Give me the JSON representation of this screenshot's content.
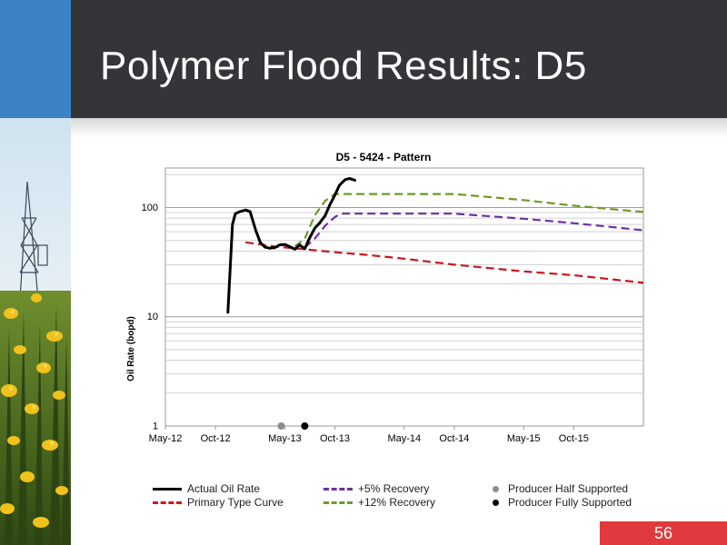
{
  "slide": {
    "title": "Polymer Flood Results: D5",
    "page_number": "56"
  },
  "colors": {
    "header": "#333538",
    "accent_blue": "#3c82c4",
    "page_badge": "#e03a3e",
    "actual": "#000000",
    "primary": "#c8191f",
    "plus5": "#7030a0",
    "plus12": "#6e9a2a",
    "half_supported": "#8c8c8c",
    "fully_supported": "#000000"
  },
  "chart_data": {
    "type": "line",
    "title": "D5 - 5424 - Pattern",
    "xlabel": "",
    "ylabel": "Oil Rate (bopd)",
    "y_scale": "log",
    "ylim": [
      1,
      230
    ],
    "y_ticks": [
      {
        "value": 1,
        "label": "1"
      },
      {
        "value": 10,
        "label": "10"
      },
      {
        "value": 100,
        "label": "100"
      }
    ],
    "xlim": [
      "2012-05-01",
      "2016-05-01"
    ],
    "x_ticks": [
      {
        "value": "2012-05-01",
        "label": "May-12"
      },
      {
        "value": "2012-10-01",
        "label": "Oct-12"
      },
      {
        "value": "2013-05-01",
        "label": "May-13"
      },
      {
        "value": "2013-10-01",
        "label": "Oct-13"
      },
      {
        "value": "2014-05-01",
        "label": "May-14"
      },
      {
        "value": "2014-10-01",
        "label": "Oct-14"
      },
      {
        "value": "2015-05-01",
        "label": "May-15"
      },
      {
        "value": "2015-10-01",
        "label": "Oct-15"
      }
    ],
    "grid": true,
    "legend_position": "bottom",
    "series": [
      {
        "name": "Actual Oil Rate",
        "color": "#000000",
        "style": "solid",
        "points": [
          [
            "2012-11-08",
            11
          ],
          [
            "2012-11-22",
            70
          ],
          [
            "2012-12-01",
            88
          ],
          [
            "2012-12-15",
            92
          ],
          [
            "2013-01-01",
            95
          ],
          [
            "2013-01-15",
            92
          ],
          [
            "2013-02-01",
            62
          ],
          [
            "2013-02-15",
            48
          ],
          [
            "2013-03-01",
            43.5
          ],
          [
            "2013-03-15",
            42.5
          ],
          [
            "2013-04-01",
            43
          ],
          [
            "2013-04-15",
            45.5
          ],
          [
            "2013-05-01",
            46
          ],
          [
            "2013-05-15",
            44
          ],
          [
            "2013-06-01",
            41.5
          ],
          [
            "2013-06-15",
            45.5
          ],
          [
            "2013-07-01",
            42
          ],
          [
            "2013-07-15",
            52
          ],
          [
            "2013-08-01",
            65
          ],
          [
            "2013-08-15",
            72
          ],
          [
            "2013-09-01",
            84
          ],
          [
            "2013-09-15",
            105
          ],
          [
            "2013-10-01",
            130
          ],
          [
            "2013-10-15",
            160
          ],
          [
            "2013-11-01",
            180
          ],
          [
            "2013-11-15",
            185
          ],
          [
            "2013-12-01",
            178
          ]
        ]
      },
      {
        "name": "Primary Type Curve",
        "color": "#c8191f",
        "style": "dashed",
        "points": [
          [
            "2013-01-01",
            48
          ],
          [
            "2013-04-01",
            44
          ],
          [
            "2013-07-01",
            41.5
          ],
          [
            "2013-10-01",
            39
          ],
          [
            "2014-01-01",
            37
          ],
          [
            "2014-05-01",
            34
          ],
          [
            "2014-10-01",
            30
          ],
          [
            "2015-05-01",
            26
          ],
          [
            "2015-10-01",
            24
          ],
          [
            "2016-05-01",
            20.5
          ]
        ]
      },
      {
        "name": "+5% Recovery",
        "color": "#7030a0",
        "style": "dashed",
        "points": [
          [
            "2013-07-01",
            43
          ],
          [
            "2013-08-01",
            52
          ],
          [
            "2013-09-01",
            68
          ],
          [
            "2013-10-01",
            82
          ],
          [
            "2013-10-20",
            88
          ],
          [
            "2014-01-01",
            88
          ],
          [
            "2014-06-01",
            88
          ],
          [
            "2014-10-01",
            88
          ],
          [
            "2015-05-01",
            79
          ],
          [
            "2015-10-01",
            72
          ],
          [
            "2016-05-01",
            62
          ]
        ]
      },
      {
        "name": "+12% Recovery",
        "color": "#6e9a2a",
        "style": "dashed",
        "points": [
          [
            "2013-06-01",
            44
          ],
          [
            "2013-07-01",
            52
          ],
          [
            "2013-08-01",
            85
          ],
          [
            "2013-09-01",
            115
          ],
          [
            "2013-10-01",
            133
          ],
          [
            "2014-01-01",
            133
          ],
          [
            "2014-06-01",
            133
          ],
          [
            "2014-10-01",
            133
          ],
          [
            "2015-05-01",
            117
          ],
          [
            "2015-10-01",
            104
          ],
          [
            "2016-05-01",
            91
          ]
        ]
      }
    ],
    "markers": [
      {
        "name": "Producer Half Supported",
        "color": "#8c8c8c",
        "date": "2013-04-20",
        "y": 1
      },
      {
        "name": "Producer Fully Supported",
        "color": "#000000",
        "date": "2013-07-01",
        "y": 1
      }
    ]
  },
  "legend": [
    {
      "label": "Actual Oil Rate",
      "kind": "line",
      "color": "#000000",
      "dashed": false
    },
    {
      "label": "Primary Type Curve",
      "kind": "line",
      "color": "#c8191f",
      "dashed": true
    },
    {
      "label": "+5% Recovery",
      "kind": "line",
      "color": "#7030a0",
      "dashed": true
    },
    {
      "label": "+12% Recovery",
      "kind": "line",
      "color": "#6e9a2a",
      "dashed": true
    },
    {
      "label": "Producer Half Supported",
      "kind": "dot",
      "color": "#8c8c8c"
    },
    {
      "label": "Producer Fully Supported",
      "kind": "dot",
      "color": "#000000"
    }
  ]
}
